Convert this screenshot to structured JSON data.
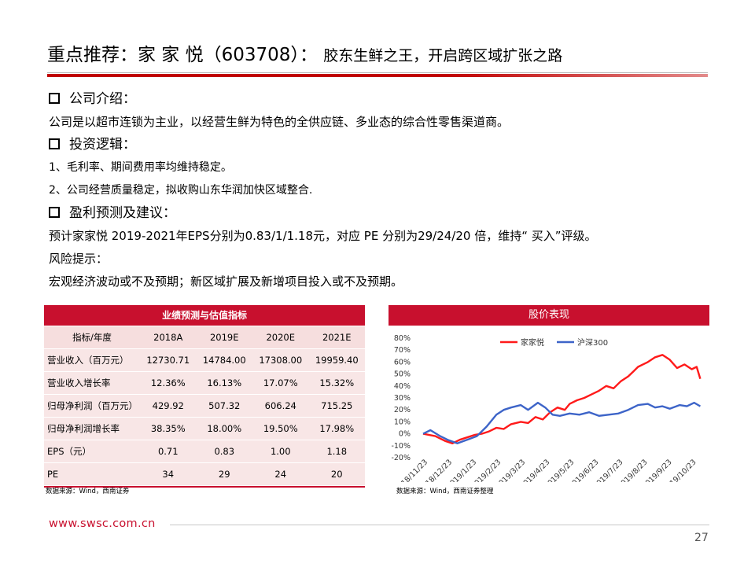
{
  "title": {
    "main": "重点推荐：家 家 悦（603708）：",
    "sub": "胶东生鲜之王，开启跨区域扩张之路"
  },
  "sections": {
    "intro_head": "公司介绍：",
    "intro_text": "公司是以超市连锁为主业，以经营生鲜为特色的全供应链、多业态的综合性零售渠道商。",
    "logic_head": "投资逻辑：",
    "logic_1": "1、毛利率、期间费用率均维持稳定。",
    "logic_2": "2、公司经营质量稳定，拟收购山东华润加快区域整合.",
    "forecast_head": "盈利预测及建议：",
    "forecast_text": "预计家家悦 2019-2021年EPS分别为0.83/1/1.18元，对应 PE 分别为29/24/20 倍，维持“ 买入”评级。",
    "risk_head": "风险提示：",
    "risk_text": "宏观经济波动或不及预期；新区域扩展及新增项目投入或不及预期。"
  },
  "table": {
    "title": "业绩预测与估值指标",
    "headers": [
      "指标/年度",
      "2018A",
      "2019E",
      "2020E",
      "2021E"
    ],
    "rows": [
      [
        "营业收入（百万元）",
        "12730.71",
        "14784.00",
        "17308.00",
        "19959.40"
      ],
      [
        "营业收入增长率",
        "12.36%",
        "16.13%",
        "17.07%",
        "15.32%"
      ],
      [
        "归母净利润（百万元）",
        "429.92",
        "507.32",
        "606.24",
        "715.25"
      ],
      [
        "归母净利润增长率",
        "38.35%",
        "18.00%",
        "19.50%",
        "17.98%"
      ],
      [
        "EPS（元）",
        "0.71",
        "0.83",
        "1.00",
        "1.18"
      ],
      [
        "PE",
        "34",
        "29",
        "24",
        "20"
      ]
    ],
    "source": "数据来源：Wind，西南证券"
  },
  "chart": {
    "title": "股价表现",
    "source": "数据来源：Wind，西南证券整理"
  },
  "chart_data": {
    "type": "line",
    "title": "股价表现",
    "ylim": [
      -20,
      80
    ],
    "ytick_labels": [
      "-20%",
      "-10%",
      "0%",
      "10%",
      "20%",
      "30%",
      "40%",
      "50%",
      "60%",
      "70%",
      "80%"
    ],
    "xtick_labels": [
      "2018/11/23",
      "2018/12/23",
      "2019/1/23",
      "2019/2/23",
      "2019/3/23",
      "2019/4/23",
      "2019/5/23",
      "2019/6/23",
      "2019/7/23",
      "2019/8/23",
      "2019/9/23",
      "2019/10/23"
    ],
    "legend_position": "top-right",
    "series": [
      {
        "name": "家家悦",
        "color": "#ff1a1a",
        "points": [
          [
            0,
            0
          ],
          [
            0.5,
            -2
          ],
          [
            0.9,
            -6
          ],
          [
            1.2,
            -8
          ],
          [
            1.5,
            -5
          ],
          [
            1.8,
            -3
          ],
          [
            2.1,
            -1
          ],
          [
            2.4,
            0
          ],
          [
            2.7,
            2
          ],
          [
            3.0,
            5
          ],
          [
            3.3,
            4
          ],
          [
            3.6,
            8
          ],
          [
            4.0,
            10
          ],
          [
            4.3,
            9
          ],
          [
            4.6,
            14
          ],
          [
            4.9,
            12
          ],
          [
            5.2,
            18
          ],
          [
            5.5,
            22
          ],
          [
            5.8,
            20
          ],
          [
            6.0,
            25
          ],
          [
            6.3,
            28
          ],
          [
            6.6,
            30
          ],
          [
            6.9,
            33
          ],
          [
            7.2,
            36
          ],
          [
            7.5,
            40
          ],
          [
            7.8,
            38
          ],
          [
            8.1,
            44
          ],
          [
            8.4,
            48
          ],
          [
            8.6,
            52
          ],
          [
            8.8,
            56
          ],
          [
            9.0,
            58
          ],
          [
            9.2,
            60
          ],
          [
            9.5,
            64
          ],
          [
            9.8,
            66
          ],
          [
            10.1,
            62
          ],
          [
            10.4,
            55
          ],
          [
            10.7,
            58
          ],
          [
            11.0,
            54
          ],
          [
            11.2,
            56
          ],
          [
            11.35,
            46
          ]
        ]
      },
      {
        "name": "沪深300",
        "color": "#3d64c8",
        "points": [
          [
            0,
            0
          ],
          [
            0.3,
            3
          ],
          [
            0.7,
            -2
          ],
          [
            1.0,
            -5
          ],
          [
            1.4,
            -8
          ],
          [
            1.8,
            -5
          ],
          [
            2.2,
            -2
          ],
          [
            2.6,
            6
          ],
          [
            3.0,
            16
          ],
          [
            3.3,
            20
          ],
          [
            3.6,
            22
          ],
          [
            4.0,
            24
          ],
          [
            4.3,
            20
          ],
          [
            4.7,
            26
          ],
          [
            5.0,
            22
          ],
          [
            5.3,
            16
          ],
          [
            5.6,
            15
          ],
          [
            6.0,
            17
          ],
          [
            6.4,
            16
          ],
          [
            6.8,
            18
          ],
          [
            7.2,
            15
          ],
          [
            7.6,
            16
          ],
          [
            8.0,
            17
          ],
          [
            8.4,
            20
          ],
          [
            8.8,
            24
          ],
          [
            9.2,
            25
          ],
          [
            9.5,
            22
          ],
          [
            9.8,
            23
          ],
          [
            10.1,
            21
          ],
          [
            10.5,
            24
          ],
          [
            10.8,
            23
          ],
          [
            11.1,
            26
          ],
          [
            11.35,
            23
          ]
        ]
      }
    ]
  },
  "footer": {
    "url": "www.swsc.com.cn",
    "page": "27"
  }
}
